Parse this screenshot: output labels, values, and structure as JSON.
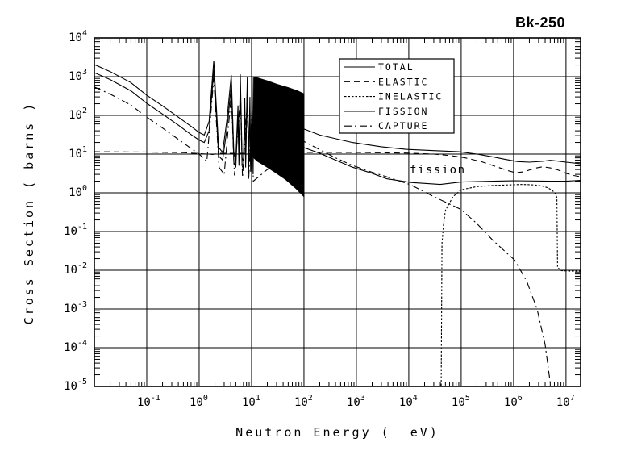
{
  "chart_data": {
    "type": "line",
    "title": "Bk-250",
    "xlabel": "Neutron Energy (  eV)",
    "ylabel": "Cross Section ( barns )",
    "xscale": "log",
    "yscale": "log",
    "xlim": [
      0.01,
      19000000.0
    ],
    "ylim": [
      1e-05,
      10000.0
    ],
    "grid": true,
    "x_tick_exponents": [
      -1,
      0,
      1,
      2,
      3,
      4,
      5,
      6,
      7
    ],
    "y_tick_exponents": [
      4,
      3,
      2,
      1,
      0,
      -1,
      -2,
      -3,
      -4,
      -5
    ],
    "legend": {
      "position": "top-center",
      "entries": [
        "TOTAL",
        "ELASTIC",
        "INELASTIC",
        "FISSION",
        "CAPTURE"
      ]
    },
    "annotations": [
      {
        "text": "fission",
        "x": 14000.0,
        "y": 3.2
      }
    ],
    "series": [
      {
        "name": "TOTAL",
        "style": "solid",
        "points": [
          [
            0.01,
            2050
          ],
          [
            0.02,
            1350
          ],
          [
            0.05,
            700
          ],
          [
            0.1,
            330
          ],
          [
            0.2,
            175
          ],
          [
            0.4,
            90
          ],
          [
            0.7,
            52
          ],
          [
            1.0,
            36
          ],
          [
            1.25,
            31
          ],
          [
            1.55,
            70
          ],
          [
            1.9,
            2600
          ],
          [
            2.35,
            15
          ],
          [
            2.8,
            11
          ],
          [
            3.4,
            80
          ],
          [
            4.1,
            1100
          ],
          [
            4.6,
            10
          ],
          [
            5.0,
            7.5
          ],
          [
            5.5,
            180
          ],
          [
            5.75,
            9
          ],
          [
            6.1,
            1150
          ],
          [
            6.6,
            8
          ],
          [
            7.0,
            6.5
          ],
          [
            7.4,
            280
          ],
          [
            7.7,
            7
          ],
          [
            8.3,
            1000
          ],
          [
            8.8,
            6
          ],
          [
            9.3,
            300
          ],
          [
            9.6,
            5.5
          ],
          [
            10.3,
            950
          ],
          [
            10.7,
            5
          ],
          [
            11.1,
            850
          ],
          [
            102,
            44
          ],
          [
            200,
            31
          ],
          [
            400,
            25
          ],
          [
            840,
            20
          ],
          [
            3000,
            15.5
          ],
          [
            8700,
            13.3
          ],
          [
            30000.0,
            12.3
          ],
          [
            90000.0,
            11.5
          ],
          [
            200000.0,
            10
          ],
          [
            400000.0,
            8.5
          ],
          [
            700000.0,
            7.3
          ],
          [
            1200000.0,
            6.4
          ],
          [
            2000000.0,
            6.2
          ],
          [
            3500000.0,
            6.5
          ],
          [
            5000000.0,
            6.9
          ],
          [
            7000000.0,
            6.6
          ],
          [
            10000000.0,
            6.2
          ],
          [
            14000000.0,
            5.9
          ],
          [
            19000000.0,
            5.6
          ]
        ]
      },
      {
        "name": "ELASTIC",
        "style": "dash",
        "points": [
          [
            0.01,
            11.5
          ],
          [
            0.1,
            11.3
          ],
          [
            0.5,
            10.9
          ],
          [
            1.0,
            10.3
          ],
          [
            1.8,
            9.8
          ],
          [
            2.5,
            10.5
          ],
          [
            10,
            10.5
          ],
          [
            100,
            11
          ],
          [
            1000,
            11
          ],
          [
            10000.0,
            10.6
          ],
          [
            30000.0,
            10
          ],
          [
            65000.0,
            9.1
          ],
          [
            120000.0,
            8
          ],
          [
            250000.0,
            6.3
          ],
          [
            500000.0,
            4.6
          ],
          [
            800000.0,
            3.7
          ],
          [
            1100000.0,
            3.3
          ],
          [
            1600000.0,
            3.5
          ],
          [
            2500000.0,
            4.3
          ],
          [
            3600000.0,
            4.7
          ],
          [
            5000000.0,
            4.4
          ],
          [
            7000000.0,
            3.9
          ],
          [
            10000000.0,
            3.2
          ],
          [
            14000000.0,
            2.8
          ],
          [
            19000000.0,
            2.6
          ]
        ]
      },
      {
        "name": "INELASTIC",
        "style": "dot",
        "points": [
          [
            41500.0,
            1.05e-05
          ],
          [
            43000.0,
            0.05
          ],
          [
            46000.0,
            0.15
          ],
          [
            50000.0,
            0.35
          ],
          [
            70000.0,
            0.8
          ],
          [
            100000.0,
            1.2
          ],
          [
            200000.0,
            1.45
          ],
          [
            400000.0,
            1.55
          ],
          [
            800000.0,
            1.6
          ],
          [
            1500000.0,
            1.65
          ],
          [
            2500000.0,
            1.6
          ],
          [
            3500000.0,
            1.5
          ],
          [
            4500000.0,
            1.35
          ],
          [
            5500000.0,
            1.15
          ],
          [
            6300000.0,
            0.95
          ],
          [
            6700000.0,
            0.75
          ],
          [
            6900000.0,
            0.012
          ],
          [
            8000000.0,
            0.0098
          ],
          [
            12000000.0,
            0.0095
          ],
          [
            19000000.0,
            0.0095
          ]
        ]
      },
      {
        "name": "FISSION",
        "style": "solid",
        "points": [
          [
            0.01,
            1270
          ],
          [
            0.02,
            840
          ],
          [
            0.05,
            430
          ],
          [
            0.1,
            205
          ],
          [
            0.2,
            108
          ],
          [
            0.4,
            56
          ],
          [
            0.7,
            32
          ],
          [
            1.0,
            23
          ],
          [
            1.25,
            20
          ],
          [
            1.55,
            40
          ],
          [
            1.9,
            1500
          ],
          [
            2.35,
            9
          ],
          [
            2.8,
            7
          ],
          [
            3.4,
            45
          ],
          [
            4.1,
            600
          ],
          [
            4.6,
            6
          ],
          [
            5.0,
            4.5
          ],
          [
            5.5,
            90
          ],
          [
            5.75,
            5
          ],
          [
            6.1,
            600
          ],
          [
            6.6,
            5
          ],
          [
            7.0,
            4
          ],
          [
            7.4,
            140
          ],
          [
            7.7,
            4.5
          ],
          [
            8.3,
            550
          ],
          [
            8.8,
            4
          ],
          [
            9.3,
            160
          ],
          [
            9.6,
            3.5
          ],
          [
            10.3,
            500
          ],
          [
            10.7,
            3
          ],
          [
            11.1,
            450
          ],
          [
            95,
            15
          ],
          [
            200,
            10.5
          ],
          [
            400,
            7
          ],
          [
            840,
            4.6
          ],
          [
            2000,
            3.2
          ],
          [
            3800,
            2.3
          ],
          [
            11000.0,
            1.85
          ],
          [
            40000.0,
            1.65
          ],
          [
            100000.0,
            1.9
          ],
          [
            400000.0,
            2.0
          ],
          [
            1000000.0,
            2.05
          ],
          [
            5000000.0,
            2.0
          ],
          [
            10000000.0,
            2.0
          ],
          [
            19000000.0,
            2.1
          ]
        ]
      },
      {
        "name": "CAPTURE",
        "style": "dashdot",
        "points": [
          [
            0.01,
            540
          ],
          [
            0.02,
            355
          ],
          [
            0.05,
            185
          ],
          [
            0.1,
            90
          ],
          [
            0.2,
            47
          ],
          [
            0.4,
            24
          ],
          [
            0.7,
            14
          ],
          [
            1.0,
            10
          ],
          [
            1.4,
            6.5
          ],
          [
            1.9,
            900
          ],
          [
            2.4,
            4.5
          ],
          [
            3.0,
            3
          ],
          [
            4.1,
            350
          ],
          [
            4.7,
            2.8
          ],
          [
            6.1,
            300
          ],
          [
            6.7,
            2.5
          ],
          [
            8.3,
            250
          ],
          [
            8.8,
            2.2
          ],
          [
            10.3,
            220
          ],
          [
            10.8,
            2
          ],
          [
            20,
            4
          ],
          [
            50,
            8
          ],
          [
            95,
            22
          ],
          [
            200,
            13
          ],
          [
            400,
            8
          ],
          [
            840,
            5.1
          ],
          [
            2000,
            3.4
          ],
          [
            5000,
            2.3
          ],
          [
            11000.0,
            1.6
          ],
          [
            30000.0,
            0.8
          ],
          [
            100000.0,
            0.37
          ],
          [
            200000.0,
            0.16
          ],
          [
            400000.0,
            0.06
          ],
          [
            700000.0,
            0.03
          ],
          [
            1060000.0,
            0.018
          ],
          [
            1800000.0,
            0.005
          ],
          [
            2800000.0,
            0.001
          ],
          [
            4000000.0,
            0.00012
          ],
          [
            4900000.0,
            1.5e-05
          ],
          [
            5100000.0,
            1e-05
          ]
        ]
      }
    ],
    "resonance_band": {
      "description": "unresolved dense resonances drawn as solid fill",
      "top": [
        [
          11,
          1000
        ],
        [
          14,
          900
        ],
        [
          20,
          780
        ],
        [
          30,
          640
        ],
        [
          50,
          520
        ],
        [
          75,
          430
        ],
        [
          100,
          360
        ]
      ],
      "bottom": [
        [
          11,
          8
        ],
        [
          13,
          6.5
        ],
        [
          18,
          5
        ],
        [
          28,
          3.4
        ],
        [
          45,
          2.2
        ],
        [
          70,
          1.3
        ],
        [
          100,
          0.8
        ]
      ]
    }
  }
}
